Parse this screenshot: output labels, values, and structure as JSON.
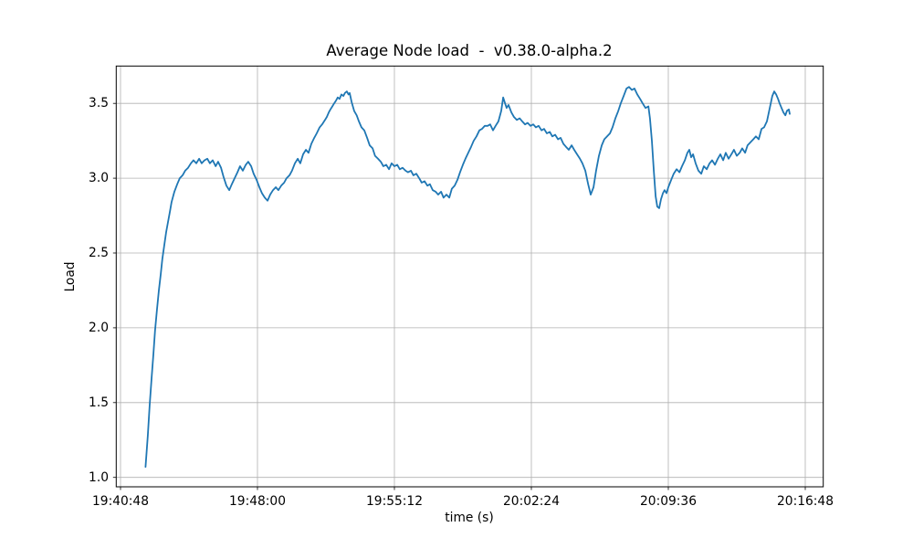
{
  "chart_data": {
    "type": "line",
    "title": "Average Node load  -  v0.38.0-alpha.2",
    "xlabel": "time (s)",
    "ylabel": "Load",
    "grid": true,
    "legend": null,
    "line_color": "#1f77b4",
    "grid_color": "#b0b0b0",
    "x_axis": {
      "kind": "time-of-day",
      "tick_labels": [
        "19:40:48",
        "19:48:00",
        "19:55:12",
        "20:02:24",
        "20:09:36",
        "20:16:48"
      ],
      "tick_seconds": [
        0,
        432,
        864,
        1296,
        1728,
        2160
      ],
      "xlim_seconds": [
        -13.5,
        2216.6
      ]
    },
    "y_axis": {
      "tick_labels": [
        "1.0",
        "1.5",
        "2.0",
        "2.5",
        "3.0",
        "3.5"
      ],
      "ticks": [
        1.0,
        1.5,
        2.0,
        2.5,
        3.0,
        3.5
      ],
      "ylim": [
        0.937,
        3.75
      ]
    },
    "series": [
      {
        "name": "average-node-load",
        "color": "#1f77b4",
        "points": [
          [
            79,
            1.07
          ],
          [
            86,
            1.28
          ],
          [
            92,
            1.48
          ],
          [
            98,
            1.66
          ],
          [
            104,
            1.83
          ],
          [
            109,
            1.98
          ],
          [
            115,
            2.12
          ],
          [
            121,
            2.25
          ],
          [
            127,
            2.36
          ],
          [
            132,
            2.46
          ],
          [
            138,
            2.55
          ],
          [
            144,
            2.64
          ],
          [
            150,
            2.71
          ],
          [
            156,
            2.78
          ],
          [
            161,
            2.84
          ],
          [
            170,
            2.91
          ],
          [
            179,
            2.96
          ],
          [
            187,
            3.0
          ],
          [
            196,
            3.02
          ],
          [
            204,
            3.05
          ],
          [
            213,
            3.07
          ],
          [
            222,
            3.1
          ],
          [
            230,
            3.12
          ],
          [
            239,
            3.1
          ],
          [
            248,
            3.13
          ],
          [
            256,
            3.1
          ],
          [
            265,
            3.12
          ],
          [
            274,
            3.13
          ],
          [
            282,
            3.1
          ],
          [
            291,
            3.12
          ],
          [
            300,
            3.08
          ],
          [
            308,
            3.11
          ],
          [
            317,
            3.07
          ],
          [
            325,
            3.01
          ],
          [
            334,
            2.95
          ],
          [
            343,
            2.92
          ],
          [
            351,
            2.96
          ],
          [
            360,
            3.0
          ],
          [
            369,
            3.04
          ],
          [
            377,
            3.08
          ],
          [
            386,
            3.05
          ],
          [
            395,
            3.09
          ],
          [
            403,
            3.11
          ],
          [
            412,
            3.08
          ],
          [
            420,
            3.03
          ],
          [
            429,
            2.99
          ],
          [
            438,
            2.94
          ],
          [
            446,
            2.9
          ],
          [
            455,
            2.87
          ],
          [
            464,
            2.85
          ],
          [
            472,
            2.89
          ],
          [
            481,
            2.92
          ],
          [
            490,
            2.94
          ],
          [
            498,
            2.92
          ],
          [
            507,
            2.95
          ],
          [
            516,
            2.97
          ],
          [
            524,
            3.0
          ],
          [
            533,
            3.02
          ],
          [
            541,
            3.05
          ],
          [
            550,
            3.1
          ],
          [
            559,
            3.13
          ],
          [
            567,
            3.1
          ],
          [
            576,
            3.16
          ],
          [
            585,
            3.19
          ],
          [
            593,
            3.17
          ],
          [
            602,
            3.23
          ],
          [
            611,
            3.27
          ],
          [
            619,
            3.3
          ],
          [
            628,
            3.34
          ],
          [
            636,
            3.36
          ],
          [
            645,
            3.39
          ],
          [
            651,
            3.41
          ],
          [
            657,
            3.44
          ],
          [
            662,
            3.46
          ],
          [
            668,
            3.48
          ],
          [
            674,
            3.5
          ],
          [
            680,
            3.52
          ],
          [
            685,
            3.54
          ],
          [
            691,
            3.53
          ],
          [
            697,
            3.56
          ],
          [
            703,
            3.55
          ],
          [
            708,
            3.57
          ],
          [
            714,
            3.58
          ],
          [
            719,
            3.56
          ],
          [
            723,
            3.57
          ],
          [
            729,
            3.51
          ],
          [
            737,
            3.45
          ],
          [
            745,
            3.42
          ],
          [
            752,
            3.38
          ],
          [
            760,
            3.34
          ],
          [
            769,
            3.32
          ],
          [
            778,
            3.27
          ],
          [
            786,
            3.22
          ],
          [
            795,
            3.2
          ],
          [
            803,
            3.15
          ],
          [
            812,
            3.13
          ],
          [
            821,
            3.11
          ],
          [
            829,
            3.08
          ],
          [
            838,
            3.09
          ],
          [
            847,
            3.06
          ],
          [
            855,
            3.1
          ],
          [
            864,
            3.08
          ],
          [
            873,
            3.09
          ],
          [
            881,
            3.06
          ],
          [
            890,
            3.07
          ],
          [
            899,
            3.05
          ],
          [
            907,
            3.04
          ],
          [
            916,
            3.05
          ],
          [
            924,
            3.02
          ],
          [
            933,
            3.03
          ],
          [
            942,
            3.0
          ],
          [
            950,
            2.97
          ],
          [
            959,
            2.98
          ],
          [
            968,
            2.95
          ],
          [
            976,
            2.96
          ],
          [
            985,
            2.92
          ],
          [
            994,
            2.91
          ],
          [
            1002,
            2.89
          ],
          [
            1011,
            2.91
          ],
          [
            1019,
            2.87
          ],
          [
            1028,
            2.89
          ],
          [
            1037,
            2.87
          ],
          [
            1045,
            2.93
          ],
          [
            1054,
            2.95
          ],
          [
            1063,
            2.99
          ],
          [
            1071,
            3.04
          ],
          [
            1080,
            3.09
          ],
          [
            1088,
            3.13
          ],
          [
            1097,
            3.17
          ],
          [
            1106,
            3.21
          ],
          [
            1114,
            3.25
          ],
          [
            1123,
            3.28
          ],
          [
            1132,
            3.32
          ],
          [
            1140,
            3.33
          ],
          [
            1149,
            3.35
          ],
          [
            1158,
            3.35
          ],
          [
            1166,
            3.36
          ],
          [
            1175,
            3.32
          ],
          [
            1183,
            3.35
          ],
          [
            1192,
            3.38
          ],
          [
            1201,
            3.45
          ],
          [
            1207,
            3.54
          ],
          [
            1213,
            3.5
          ],
          [
            1218,
            3.47
          ],
          [
            1224,
            3.49
          ],
          [
            1233,
            3.44
          ],
          [
            1241,
            3.41
          ],
          [
            1250,
            3.39
          ],
          [
            1259,
            3.4
          ],
          [
            1267,
            3.38
          ],
          [
            1276,
            3.36
          ],
          [
            1284,
            3.37
          ],
          [
            1293,
            3.35
          ],
          [
            1302,
            3.36
          ],
          [
            1310,
            3.34
          ],
          [
            1319,
            3.35
          ],
          [
            1328,
            3.32
          ],
          [
            1336,
            3.33
          ],
          [
            1345,
            3.3
          ],
          [
            1354,
            3.31
          ],
          [
            1362,
            3.28
          ],
          [
            1371,
            3.29
          ],
          [
            1380,
            3.26
          ],
          [
            1388,
            3.27
          ],
          [
            1397,
            3.23
          ],
          [
            1405,
            3.21
          ],
          [
            1414,
            3.19
          ],
          [
            1423,
            3.22
          ],
          [
            1431,
            3.19
          ],
          [
            1440,
            3.16
          ],
          [
            1449,
            3.13
          ],
          [
            1457,
            3.1
          ],
          [
            1466,
            3.05
          ],
          [
            1475,
            2.96
          ],
          [
            1483,
            2.89
          ],
          [
            1492,
            2.94
          ],
          [
            1500,
            3.05
          ],
          [
            1509,
            3.15
          ],
          [
            1518,
            3.22
          ],
          [
            1526,
            3.26
          ],
          [
            1535,
            3.28
          ],
          [
            1544,
            3.3
          ],
          [
            1552,
            3.34
          ],
          [
            1561,
            3.4
          ],
          [
            1570,
            3.45
          ],
          [
            1578,
            3.5
          ],
          [
            1587,
            3.55
          ],
          [
            1596,
            3.6
          ],
          [
            1604,
            3.61
          ],
          [
            1613,
            3.59
          ],
          [
            1621,
            3.6
          ],
          [
            1630,
            3.56
          ],
          [
            1639,
            3.53
          ],
          [
            1647,
            3.5
          ],
          [
            1656,
            3.47
          ],
          [
            1665,
            3.48
          ],
          [
            1670,
            3.4
          ],
          [
            1676,
            3.25
          ],
          [
            1682,
            3.05
          ],
          [
            1688,
            2.88
          ],
          [
            1693,
            2.81
          ],
          [
            1699,
            2.8
          ],
          [
            1705,
            2.86
          ],
          [
            1711,
            2.9
          ],
          [
            1716,
            2.92
          ],
          [
            1722,
            2.9
          ],
          [
            1728,
            2.94
          ],
          [
            1737,
            2.99
          ],
          [
            1745,
            3.03
          ],
          [
            1754,
            3.06
          ],
          [
            1763,
            3.04
          ],
          [
            1771,
            3.08
          ],
          [
            1780,
            3.12
          ],
          [
            1788,
            3.17
          ],
          [
            1794,
            3.19
          ],
          [
            1800,
            3.14
          ],
          [
            1806,
            3.16
          ],
          [
            1814,
            3.1
          ],
          [
            1823,
            3.05
          ],
          [
            1832,
            3.03
          ],
          [
            1840,
            3.08
          ],
          [
            1849,
            3.06
          ],
          [
            1858,
            3.1
          ],
          [
            1866,
            3.12
          ],
          [
            1875,
            3.09
          ],
          [
            1884,
            3.13
          ],
          [
            1892,
            3.16
          ],
          [
            1901,
            3.12
          ],
          [
            1909,
            3.17
          ],
          [
            1918,
            3.13
          ],
          [
            1927,
            3.16
          ],
          [
            1935,
            3.19
          ],
          [
            1944,
            3.15
          ],
          [
            1953,
            3.17
          ],
          [
            1961,
            3.2
          ],
          [
            1970,
            3.17
          ],
          [
            1978,
            3.22
          ],
          [
            1987,
            3.24
          ],
          [
            1996,
            3.26
          ],
          [
            2004,
            3.28
          ],
          [
            2013,
            3.26
          ],
          [
            2022,
            3.33
          ],
          [
            2030,
            3.34
          ],
          [
            2039,
            3.38
          ],
          [
            2045,
            3.44
          ],
          [
            2051,
            3.5
          ],
          [
            2056,
            3.55
          ],
          [
            2062,
            3.58
          ],
          [
            2068,
            3.56
          ],
          [
            2074,
            3.53
          ],
          [
            2079,
            3.5
          ],
          [
            2085,
            3.47
          ],
          [
            2091,
            3.44
          ],
          [
            2097,
            3.42
          ],
          [
            2102,
            3.45
          ],
          [
            2108,
            3.46
          ],
          [
            2111,
            3.43
          ]
        ]
      }
    ]
  }
}
